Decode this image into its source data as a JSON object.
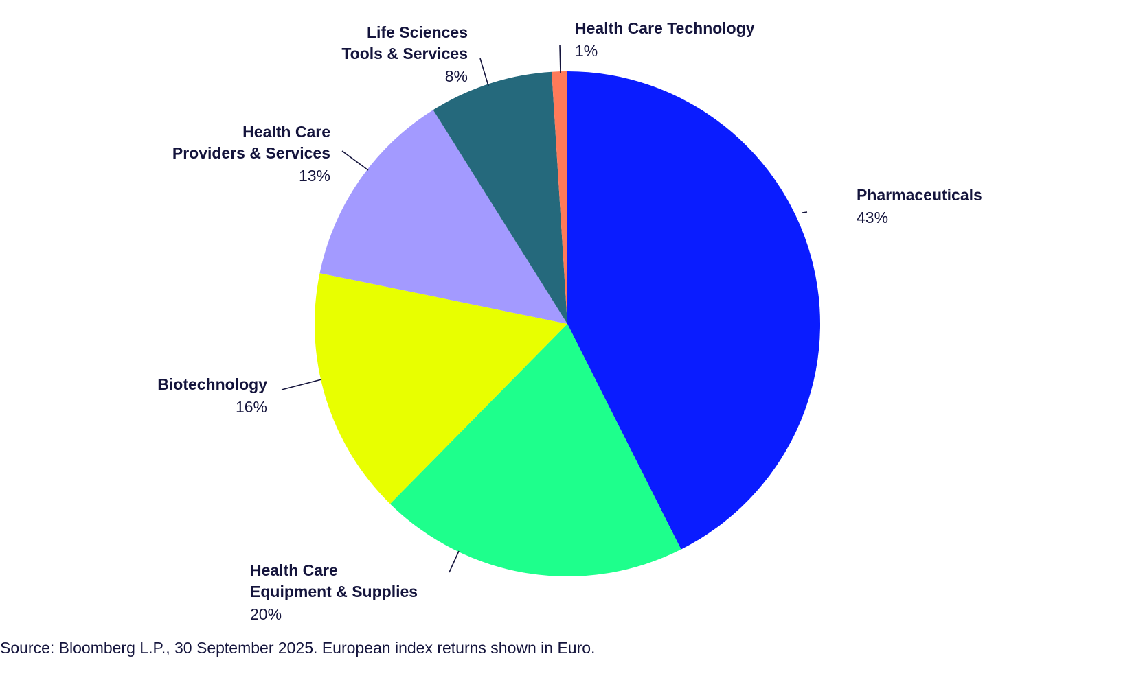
{
  "chart_data": {
    "type": "pie",
    "title": "",
    "slices": [
      {
        "label_lines": [
          "Pharmaceuticals"
        ],
        "value": 43,
        "value_label": "43%",
        "color": "#0a1cff"
      },
      {
        "label_lines": [
          "Health Care",
          "Equipment & Supplies"
        ],
        "value": 20,
        "value_label": "20%",
        "color": "#1eff8c"
      },
      {
        "label_lines": [
          "Biotechnology"
        ],
        "value": 16,
        "value_label": "16%",
        "color": "#e8ff00"
      },
      {
        "label_lines": [
          "Health Care",
          "Providers & Services"
        ],
        "value": 13,
        "value_label": "13%",
        "color": "#a39aff"
      },
      {
        "label_lines": [
          "Life Sciences",
          "Tools & Services"
        ],
        "value": 8,
        "value_label": "8%",
        "color": "#25697c"
      },
      {
        "label_lines": [
          "Health Care Technology"
        ],
        "value": 1,
        "value_label": "1%",
        "color": "#ff7a59"
      }
    ]
  },
  "footer": {
    "source": "Source: Bloomberg L.P., 30 September 2025. European index returns shown in Euro."
  }
}
